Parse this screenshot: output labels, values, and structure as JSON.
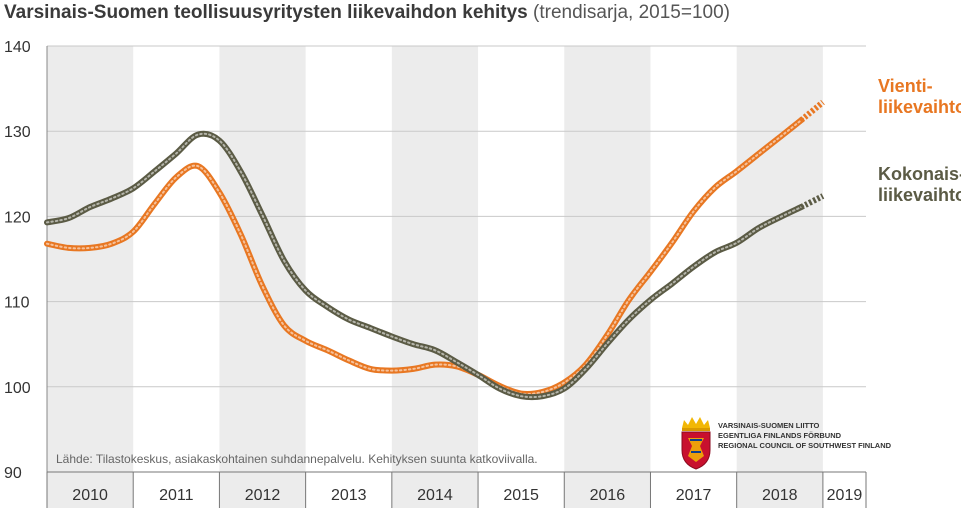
{
  "chart_data": {
    "type": "line",
    "title": "Varsinais-Suomen teollisuusyritysten liikevaihdon kehitys",
    "subtitle": "(trendisarja, 2015=100)",
    "ylim": [
      90,
      140
    ],
    "yticks": [
      90,
      100,
      110,
      120,
      130,
      140
    ],
    "xlim": [
      2010,
      2019.5
    ],
    "x_tick_labels": [
      "2010",
      "2011",
      "2012",
      "2013",
      "2014",
      "2015",
      "2016",
      "2017",
      "2018",
      "2019"
    ],
    "grid": true,
    "actual_until": 2018.75,
    "series": [
      {
        "name": "Vienti-liikevaihto",
        "label_lines": [
          "Vienti-",
          "liikevaihto"
        ],
        "color": "#e87722",
        "points": [
          [
            2010.0,
            116.8
          ],
          [
            2010.25,
            116.3
          ],
          [
            2010.5,
            116.3
          ],
          [
            2010.75,
            116.8
          ],
          [
            2011.0,
            118.2
          ],
          [
            2011.25,
            121.5
          ],
          [
            2011.5,
            124.6
          ],
          [
            2011.75,
            125.9
          ],
          [
            2012.0,
            122.8
          ],
          [
            2012.25,
            117.8
          ],
          [
            2012.5,
            111.8
          ],
          [
            2012.75,
            107.2
          ],
          [
            2013.0,
            105.4
          ],
          [
            2013.25,
            104.3
          ],
          [
            2013.5,
            103.1
          ],
          [
            2013.75,
            102.1
          ],
          [
            2014.0,
            101.9
          ],
          [
            2014.25,
            102.1
          ],
          [
            2014.5,
            102.6
          ],
          [
            2014.75,
            102.4
          ],
          [
            2015.0,
            101.4
          ],
          [
            2015.25,
            100.1
          ],
          [
            2015.5,
            99.2
          ],
          [
            2015.75,
            99.4
          ],
          [
            2016.0,
            100.5
          ],
          [
            2016.25,
            102.6
          ],
          [
            2016.5,
            106.1
          ],
          [
            2016.75,
            110.2
          ],
          [
            2017.0,
            113.5
          ],
          [
            2017.25,
            116.9
          ],
          [
            2017.5,
            120.6
          ],
          [
            2017.75,
            123.4
          ],
          [
            2018.0,
            125.3
          ],
          [
            2018.25,
            127.3
          ],
          [
            2018.5,
            129.3
          ],
          [
            2018.75,
            131.3
          ],
          [
            2019.0,
            133.4
          ]
        ]
      },
      {
        "name": "Kokonais-liikevaihto",
        "label_lines": [
          "Kokonais-",
          "liikevaihto"
        ],
        "color": "#5b5b45",
        "points": [
          [
            2010.0,
            119.3
          ],
          [
            2010.25,
            119.8
          ],
          [
            2010.5,
            121.1
          ],
          [
            2010.75,
            122.1
          ],
          [
            2011.0,
            123.3
          ],
          [
            2011.25,
            125.3
          ],
          [
            2011.5,
            127.4
          ],
          [
            2011.75,
            129.6
          ],
          [
            2012.0,
            128.9
          ],
          [
            2012.25,
            125.2
          ],
          [
            2012.5,
            120.1
          ],
          [
            2012.75,
            114.8
          ],
          [
            2013.0,
            111.3
          ],
          [
            2013.25,
            109.4
          ],
          [
            2013.5,
            107.9
          ],
          [
            2013.75,
            106.9
          ],
          [
            2014.0,
            105.9
          ],
          [
            2014.25,
            105.0
          ],
          [
            2014.5,
            104.3
          ],
          [
            2014.75,
            102.9
          ],
          [
            2015.0,
            101.4
          ],
          [
            2015.25,
            99.8
          ],
          [
            2015.5,
            98.9
          ],
          [
            2015.75,
            98.9
          ],
          [
            2016.0,
            99.8
          ],
          [
            2016.25,
            102.1
          ],
          [
            2016.5,
            105.1
          ],
          [
            2016.75,
            107.9
          ],
          [
            2017.0,
            110.2
          ],
          [
            2017.25,
            112.1
          ],
          [
            2017.5,
            114.1
          ],
          [
            2017.75,
            115.8
          ],
          [
            2018.0,
            116.9
          ],
          [
            2018.25,
            118.6
          ],
          [
            2018.5,
            119.9
          ],
          [
            2018.75,
            121.1
          ],
          [
            2019.0,
            122.4
          ]
        ]
      }
    ]
  },
  "source_note": "Lähde: Tilastokeskus, asiakaskohtainen suhdannepalvelu. Kehityksen suunta katkoviivalla.",
  "logo": {
    "lines": [
      "VARSINAIS-SUOMEN LIITTO",
      "EGENTLIGA FINLANDS FÖRBUND",
      "REGIONAL COUNCIL OF SOUTHWEST FINLAND"
    ],
    "colors": {
      "shield": "#c8102e",
      "crown": "#f2b705"
    }
  }
}
